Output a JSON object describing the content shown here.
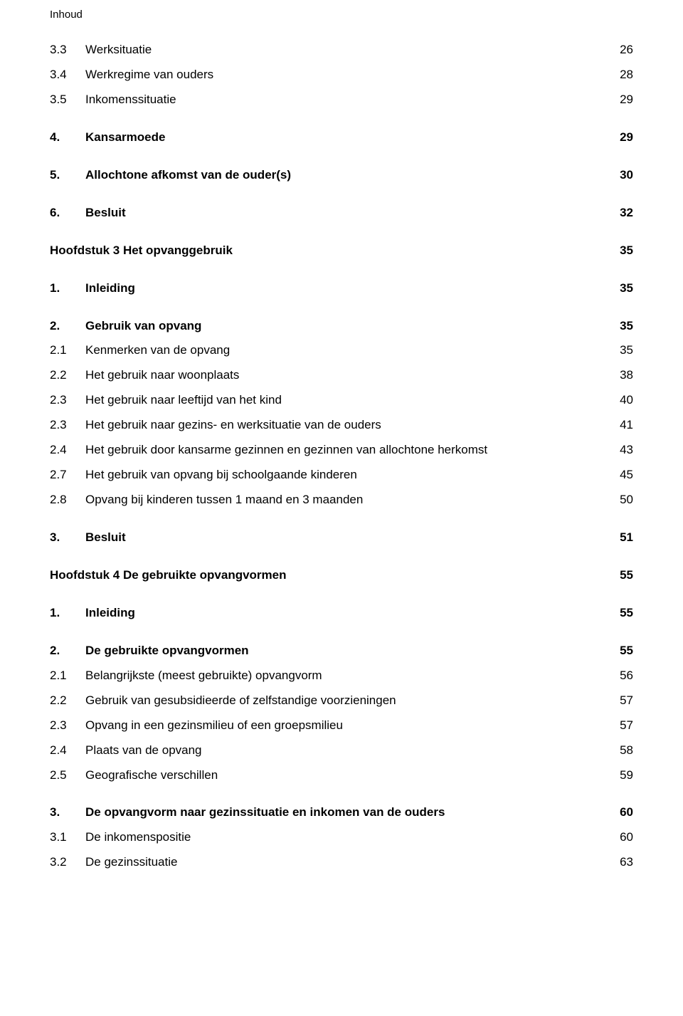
{
  "header": "Inhoud",
  "entries": [
    {
      "num": "3.3",
      "title": "Werksituatie",
      "page": "26",
      "bold": false,
      "gap_after": 12
    },
    {
      "num": "3.4",
      "title": "Werkregime van ouders",
      "page": "28",
      "bold": false,
      "gap_after": 12
    },
    {
      "num": "3.5",
      "title": "Inkomenssituatie",
      "page": "29",
      "bold": false,
      "gap_after": 30
    },
    {
      "num": "4.",
      "title": "Kansarmoede",
      "page": "29",
      "bold": true,
      "gap_after": 30
    },
    {
      "num": "5.",
      "title": "Allochtone afkomst van de ouder(s)",
      "page": "30",
      "bold": true,
      "gap_after": 30
    },
    {
      "num": "6.",
      "title": "Besluit",
      "page": "32",
      "bold": true,
      "gap_after": 30
    },
    {
      "num": "",
      "title": "Hoofdstuk 3 Het opvanggebruik",
      "page": "35",
      "bold": true,
      "chapter": true,
      "gap_after": 30
    },
    {
      "num": "1.",
      "title": "Inleiding",
      "page": "35",
      "bold": true,
      "gap_after": 30
    },
    {
      "num": "2.",
      "title": "Gebruik van opvang",
      "page": "35",
      "bold": true,
      "gap_after": 12
    },
    {
      "num": "2.1",
      "title": "Kenmerken van de opvang",
      "page": "35",
      "bold": false,
      "gap_after": 12
    },
    {
      "num": "2.2",
      "title": "Het gebruik naar woonplaats",
      "page": "38",
      "bold": false,
      "gap_after": 12
    },
    {
      "num": "2.3",
      "title": "Het gebruik naar leeftijd van het kind",
      "page": "40",
      "bold": false,
      "gap_after": 12
    },
    {
      "num": "2.3",
      "title": "Het gebruik naar gezins- en werksituatie van de ouders",
      "page": "41",
      "bold": false,
      "gap_after": 12
    },
    {
      "num": "2.4",
      "title": "Het gebruik door kansarme gezinnen en gezinnen van allochtone herkomst",
      "page": "43",
      "bold": false,
      "gap_after": 12
    },
    {
      "num": "2.7",
      "title": "Het gebruik van opvang bij schoolgaande kinderen",
      "page": "45",
      "bold": false,
      "gap_after": 12
    },
    {
      "num": "2.8",
      "title": "Opvang bij kinderen tussen 1 maand en 3 maanden",
      "page": "50",
      "bold": false,
      "gap_after": 30
    },
    {
      "num": "3.",
      "title": "Besluit",
      "page": "51",
      "bold": true,
      "gap_after": 30
    },
    {
      "num": "",
      "title": "Hoofdstuk 4 De gebruikte opvangvormen",
      "page": "55",
      "bold": true,
      "chapter": true,
      "gap_after": 30
    },
    {
      "num": "1.",
      "title": "Inleiding",
      "page": "55",
      "bold": true,
      "gap_after": 30
    },
    {
      "num": "2.",
      "title": "De gebruikte opvangvormen",
      "page": "55",
      "bold": true,
      "gap_after": 12
    },
    {
      "num": "2.1",
      "title": "Belangrijkste (meest gebruikte) opvangvorm",
      "page": "56",
      "bold": false,
      "gap_after": 12
    },
    {
      "num": "2.2",
      "title": "Gebruik van gesubsidieerde of zelfstandige voorzieningen",
      "page": "57",
      "bold": false,
      "gap_after": 12
    },
    {
      "num": "2.3",
      "title": "Opvang in een gezinsmilieu of een groepsmilieu",
      "page": "57",
      "bold": false,
      "gap_after": 12
    },
    {
      "num": "2.4",
      "title": "Plaats van de opvang",
      "page": "58",
      "bold": false,
      "gap_after": 12
    },
    {
      "num": "2.5",
      "title": "Geografische verschillen",
      "page": "59",
      "bold": false,
      "gap_after": 30
    },
    {
      "num": "3.",
      "title": "De opvangvorm naar gezinssituatie en inkomen van de ouders",
      "page": "60",
      "bold": true,
      "gap_after": 12
    },
    {
      "num": "3.1",
      "title": "De inkomenspositie",
      "page": "60",
      "bold": false,
      "gap_after": 12
    },
    {
      "num": "3.2",
      "title": "De gezinssituatie",
      "page": "63",
      "bold": false,
      "gap_after": 0
    }
  ]
}
